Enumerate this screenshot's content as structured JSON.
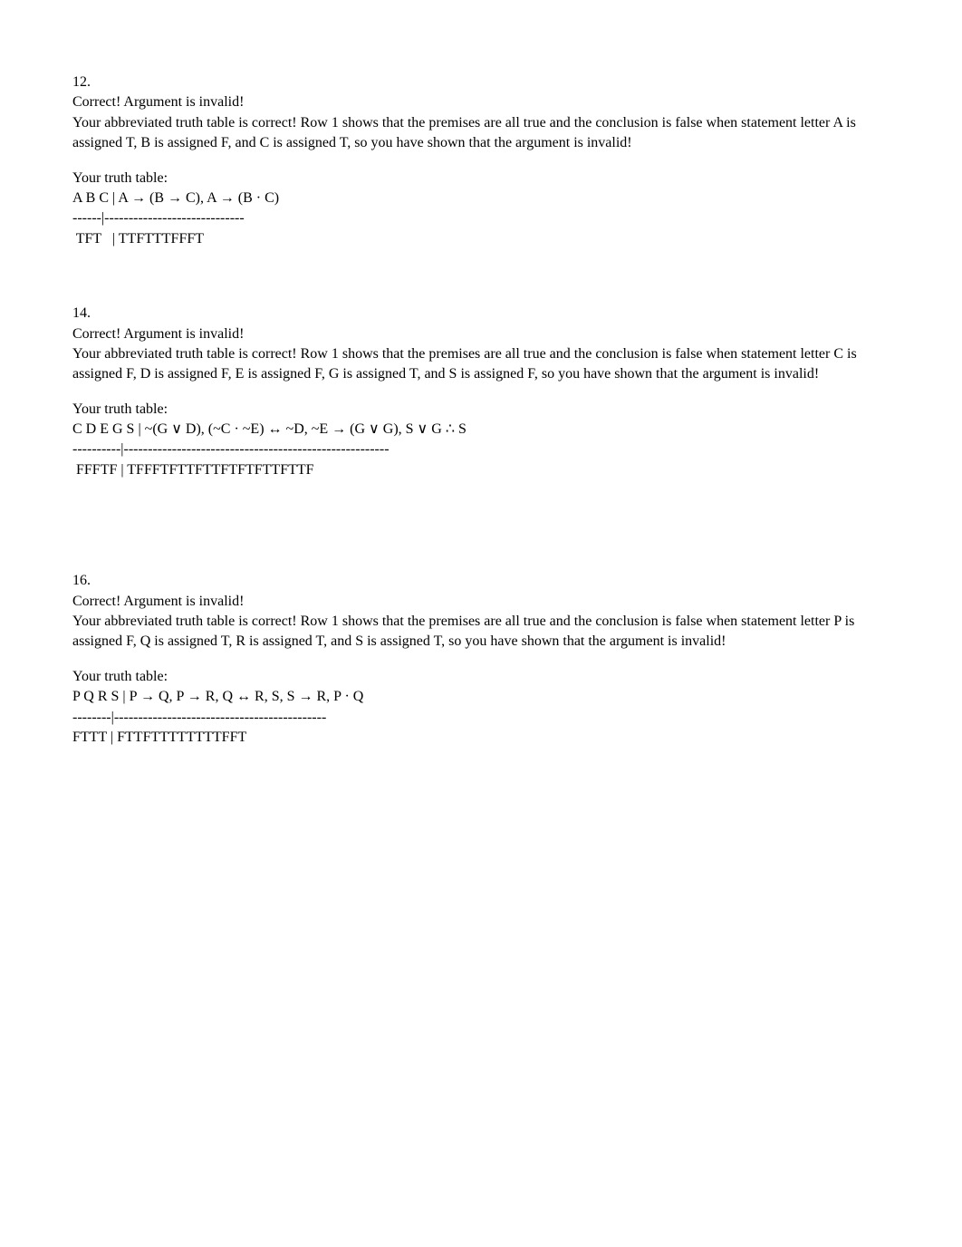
{
  "problems": [
    {
      "number": "12.",
      "result": "Correct! Argument is invalid!",
      "explanation": "Your abbreviated truth table is correct! Row 1 shows that the premises are all true and the conclusion is false when statement letter A is assigned T, B is assigned F, and C is assigned T, so you have shown that the argument is invalid!",
      "truth_table_label": "Your truth table:",
      "truth_table_header": "A B C | A → (B → C), A → (B · C)",
      "truth_table_divider": "------|-----------------------------",
      "truth_table_row": " TFT   | TTFTTTFFFT"
    },
    {
      "number": "14.",
      "result": "Correct! Argument is invalid!",
      "explanation": "Your abbreviated truth table is correct! Row 1 shows that the premises are all true and the conclusion is false when statement letter C is assigned F, D is assigned F, E is assigned F, G is assigned T, and S is assigned F,  so you have shown that the argument is invalid!",
      "truth_table_label": "Your truth table:",
      "truth_table_header": "C D E G S | ~(G ∨ D), (~C · ~E) ↔ ~D, ~E → (G ∨ G), S ∨ G ∴ S",
      "truth_table_divider": "----------|-------------------------------------------------------",
      "truth_table_row": " FFFTF | TFFFTFTTFTTFTFTFTTFTTF"
    },
    {
      "number": "16.",
      "result": "Correct! Argument is invalid!",
      "explanation": "Your abbreviated truth table is correct! Row 1 shows that the premises are all true and the conclusion is false when statement letter P is assigned F, Q is assigned T, R is assigned T, and S is assigned T,  so you have shown that the argument is invalid!",
      "truth_table_label": "Your truth table:",
      "truth_table_header": "P Q R S | P → Q, P → R, Q ↔ R, S, S → R, P · Q",
      "truth_table_divider": "--------|--------------------------------------------",
      "truth_table_row": "FTTT | FTTFTTTTTTTTFFT"
    }
  ]
}
